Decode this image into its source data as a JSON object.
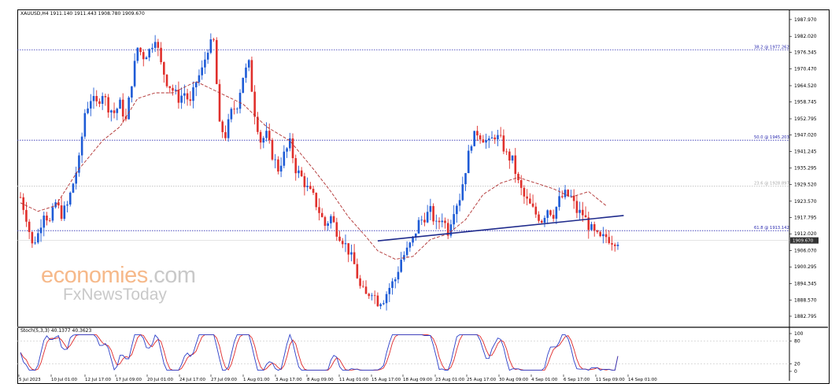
{
  "header": {
    "main_info": "XAUUSD,H4  1911.140 1911.443 1908.780 1909.670",
    "stoch_info": "Stoch(5,3,3) 40.1377 40.3623"
  },
  "watermark": {
    "line1_a": "economies",
    "line1_b": ".com",
    "line2": "FxNewsToday",
    "colors": {
      "orange": "#f6b98a",
      "gray": "#c9c9c9"
    }
  },
  "colors": {
    "bull": "#1e5bd6",
    "bear": "#e0302c",
    "ma": "#b03030",
    "trendline": "#1f2b8c",
    "fib": "#2b2bb0",
    "fib_minor": "#bbbbbb",
    "stoch_main": "#2b3fc9",
    "stoch_signal": "#e02a2a",
    "price_box": "#333333"
  },
  "chart_data": [
    {
      "type": "line",
      "subtype": "candlestick",
      "title": "XAUUSD,H4",
      "symbol": "XAUUSD",
      "timeframe": "H4",
      "ohlc_readout": {
        "open": 1911.14,
        "high": 1911.443,
        "low": 1908.78,
        "close": 1909.67
      },
      "current_price": "1909.670",
      "ylim": [
        1880.0,
        1991.0
      ],
      "y_ticks": [
        "1987.970",
        "1982.020",
        "1976.345",
        "1970.470",
        "1964.520",
        "1958.745",
        "1952.795",
        "1947.020",
        "1941.245",
        "1935.295",
        "1929.520",
        "1923.570",
        "1917.795",
        "1912.020",
        "1906.070",
        "1900.295",
        "1894.345",
        "1888.570",
        "1882.795"
      ],
      "x_ticks": [
        "5 Jul 2023",
        "10 Jul 01:00",
        "12 Jul 17:00",
        "17 Jul 09:00",
        "20 Jul 01:00",
        "24 Jul 17:00",
        "27 Jul 09:00",
        "1 Aug 01:00",
        "3 Aug 17:00",
        "8 Aug 09:00",
        "11 Aug 01:00",
        "15 Aug 17:00",
        "18 Aug 09:00",
        "23 Aug 01:00",
        "25 Aug 17:00",
        "30 Aug 09:00",
        "4 Sep 01:00",
        "6 Sep 17:00",
        "11 Sep 09:00",
        "14 Sep 01:00"
      ],
      "fibonacci": [
        {
          "label": "38.2 @ 1977.262",
          "value": 1977.262,
          "style": "dotted"
        },
        {
          "label": "50.0 @ 1945.203",
          "value": 1945.203,
          "style": "dotted"
        },
        {
          "label": "23.6 @ 1928.897",
          "value": 1928.897,
          "style": "faint"
        },
        {
          "label": "61.8 @ 1913.142",
          "value": 1913.142,
          "style": "dotted"
        }
      ],
      "trendline": {
        "start": {
          "x_index": 122,
          "value": 1909.5
        },
        "end": {
          "x_index": 206,
          "value": 1918.5
        }
      },
      "moving_average_path": [
        [
          0,
          1923
        ],
        [
          6,
          1920
        ],
        [
          12,
          1922
        ],
        [
          20,
          1935
        ],
        [
          28,
          1945
        ],
        [
          34,
          1950
        ],
        [
          40,
          1960
        ],
        [
          46,
          1962
        ],
        [
          52,
          1962
        ],
        [
          60,
          1966
        ],
        [
          68,
          1962
        ],
        [
          76,
          1958
        ],
        [
          84,
          1950
        ],
        [
          92,
          1945
        ],
        [
          100,
          1935
        ],
        [
          106,
          1927
        ],
        [
          112,
          1918
        ],
        [
          118,
          1911
        ],
        [
          122,
          1906
        ],
        [
          128,
          1903
        ],
        [
          134,
          1904
        ],
        [
          140,
          1910
        ],
        [
          146,
          1912
        ],
        [
          152,
          1917
        ],
        [
          158,
          1926
        ],
        [
          164,
          1930
        ],
        [
          170,
          1932
        ],
        [
          176,
          1930
        ],
        [
          182,
          1928
        ],
        [
          188,
          1925
        ],
        [
          194,
          1927
        ],
        [
          200,
          1922
        ]
      ],
      "price_path": [
        [
          0,
          1925
        ],
        [
          2,
          1918
        ],
        [
          4,
          1908
        ],
        [
          6,
          1912
        ],
        [
          8,
          1920
        ],
        [
          10,
          1916
        ],
        [
          12,
          1923
        ],
        [
          14,
          1919
        ],
        [
          16,
          1922
        ],
        [
          18,
          1930
        ],
        [
          20,
          1938
        ],
        [
          22,
          1955
        ],
        [
          24,
          1960
        ],
        [
          26,
          1958
        ],
        [
          28,
          1962
        ],
        [
          30,
          1957
        ],
        [
          32,
          1955
        ],
        [
          34,
          1958
        ],
        [
          36,
          1952
        ],
        [
          38,
          1966
        ],
        [
          40,
          1978
        ],
        [
          42,
          1975
        ],
        [
          44,
          1977
        ],
        [
          46,
          1982
        ],
        [
          48,
          1972
        ],
        [
          50,
          1966
        ],
        [
          52,
          1963
        ],
        [
          54,
          1960
        ],
        [
          56,
          1962
        ],
        [
          58,
          1958
        ],
        [
          60,
          1966
        ],
        [
          62,
          1970
        ],
        [
          64,
          1978
        ],
        [
          66,
          1980
        ],
        [
          68,
          1950
        ],
        [
          70,
          1947
        ],
        [
          72,
          1955
        ],
        [
          74,
          1958
        ],
        [
          76,
          1968
        ],
        [
          78,
          1972
        ],
        [
          80,
          1955
        ],
        [
          82,
          1945
        ],
        [
          84,
          1947
        ],
        [
          86,
          1940
        ],
        [
          88,
          1935
        ],
        [
          90,
          1940
        ],
        [
          92,
          1944
        ],
        [
          94,
          1935
        ],
        [
          96,
          1932
        ],
        [
          98,
          1928
        ],
        [
          100,
          1925
        ],
        [
          102,
          1920
        ],
        [
          104,
          1915
        ],
        [
          106,
          1918
        ],
        [
          108,
          1913
        ],
        [
          110,
          1910
        ],
        [
          112,
          1906
        ],
        [
          114,
          1901
        ],
        [
          116,
          1893
        ],
        [
          118,
          1890
        ],
        [
          120,
          1892
        ],
        [
          122,
          1888
        ],
        [
          124,
          1889
        ],
        [
          126,
          1893
        ],
        [
          128,
          1896
        ],
        [
          130,
          1903
        ],
        [
          132,
          1906
        ],
        [
          134,
          1910
        ],
        [
          136,
          1916
        ],
        [
          138,
          1918
        ],
        [
          140,
          1920
        ],
        [
          142,
          1915
        ],
        [
          144,
          1918
        ],
        [
          146,
          1913
        ],
        [
          148,
          1921
        ],
        [
          150,
          1925
        ],
        [
          152,
          1935
        ],
        [
          154,
          1945
        ],
        [
          156,
          1948
        ],
        [
          158,
          1946
        ],
        [
          160,
          1944
        ],
        [
          162,
          1947
        ],
        [
          164,
          1945
        ],
        [
          166,
          1940
        ],
        [
          168,
          1938
        ],
        [
          170,
          1930
        ],
        [
          172,
          1925
        ],
        [
          174,
          1922
        ],
        [
          176,
          1919
        ],
        [
          178,
          1917
        ],
        [
          180,
          1921
        ],
        [
          182,
          1919
        ],
        [
          184,
          1924
        ],
        [
          186,
          1926
        ],
        [
          188,
          1925
        ],
        [
          190,
          1920
        ],
        [
          192,
          1919
        ],
        [
          194,
          1915
        ],
        [
          196,
          1912
        ],
        [
          198,
          1910
        ],
        [
          200,
          1911
        ],
        [
          202,
          1909.67
        ]
      ],
      "candle_count": 205
    },
    {
      "type": "line",
      "title": "Stoch(5,3,3) 40.1377 40.3623",
      "indicator": "Stochastic Oscillator (5,3,3)",
      "main_value": 40.1377,
      "signal_value": 40.3623,
      "ylim": [
        0,
        100
      ],
      "y_ticks": [
        "100",
        "80",
        "20",
        "0"
      ],
      "levels": [
        80,
        20
      ]
    }
  ]
}
